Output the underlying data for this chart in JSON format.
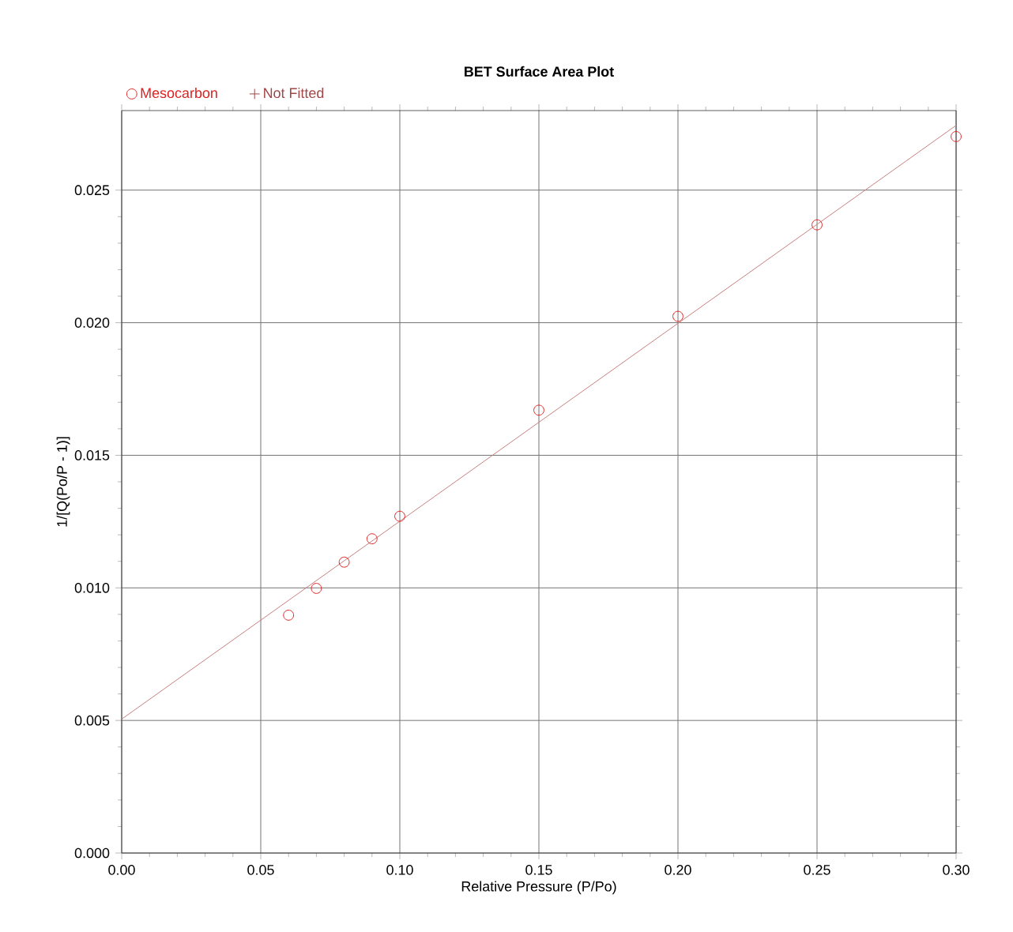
{
  "chart_data": {
    "type": "scatter",
    "title": "BET Surface Area Plot",
    "xlabel": "Relative Pressure (P/Po)",
    "ylabel": "1/[Q(Po/P - 1)]",
    "xlim": [
      0,
      0.3
    ],
    "ylim": [
      0,
      0.028
    ],
    "xticks": [
      {
        "value": 0,
        "label": "0.00"
      },
      {
        "value": 0.05,
        "label": "0.05"
      },
      {
        "value": 0.1,
        "label": "0.10"
      },
      {
        "value": 0.15,
        "label": "0.15"
      },
      {
        "value": 0.2,
        "label": "0.20"
      },
      {
        "value": 0.25,
        "label": "0.25"
      },
      {
        "value": 0.3,
        "label": "0.30"
      }
    ],
    "yticks": [
      {
        "value": 0,
        "label": "0.000"
      },
      {
        "value": 0.005,
        "label": "0.005"
      },
      {
        "value": 0.01,
        "label": "0.010"
      },
      {
        "value": 0.015,
        "label": "0.015"
      },
      {
        "value": 0.02,
        "label": "0.020"
      },
      {
        "value": 0.025,
        "label": "0.025"
      }
    ],
    "grid": true,
    "legend": "top left",
    "marker": "circle",
    "series": [
      {
        "name": "Mesocarbon",
        "color": "#e02020",
        "x": [
          0.06,
          0.07,
          0.08,
          0.09,
          0.1,
          0.15,
          0.2,
          0.25,
          0.3
        ],
        "values": [
          0.00897,
          0.00998,
          0.01097,
          0.01185,
          0.0127,
          0.0167,
          0.02024,
          0.02369,
          0.02702
        ]
      },
      {
        "name": "Not Fitted",
        "color": "#a04848",
        "marker": "cross"
      },
      {
        "type": "line",
        "color": "#c88080",
        "marker": "none",
        "line_style": "solid",
        "x": [
          0,
          0.3
        ],
        "values": [
          0.00505,
          0.02744
        ]
      }
    ]
  }
}
